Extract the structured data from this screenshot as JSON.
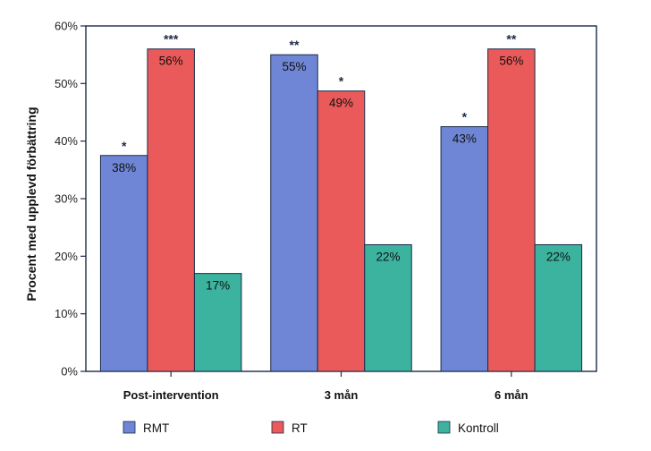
{
  "chart_data": {
    "type": "bar",
    "title": "",
    "xlabel": "",
    "ylabel": "Procent med upplevd förbättring",
    "ylim": [
      0,
      60
    ],
    "yticks": [
      "0%",
      "10%",
      "20%",
      "30%",
      "40%",
      "50%",
      "60%"
    ],
    "ytick_values": [
      0,
      10,
      20,
      30,
      40,
      50,
      60
    ],
    "categories": [
      "Post-intervention",
      "3 mån",
      "6 mån"
    ],
    "series": [
      {
        "name": "RMT",
        "color": "#6f86d6",
        "values": [
          37.5,
          55,
          42.5
        ],
        "labels": [
          "38%",
          "55%",
          "43%"
        ],
        "significance": [
          "*",
          "**",
          "*"
        ]
      },
      {
        "name": "RT",
        "color": "#ea5a5a",
        "values": [
          56,
          48.7,
          56
        ],
        "labels": [
          "56%",
          "49%",
          "56%"
        ],
        "significance": [
          "***",
          "*",
          "**"
        ]
      },
      {
        "name": "Kontroll",
        "color": "#3cb39e",
        "values": [
          17,
          22,
          22
        ],
        "labels": [
          "17%",
          "22%",
          "22%"
        ],
        "significance": [
          "",
          "",
          ""
        ]
      }
    ],
    "grid": false,
    "legend": "bottom"
  }
}
